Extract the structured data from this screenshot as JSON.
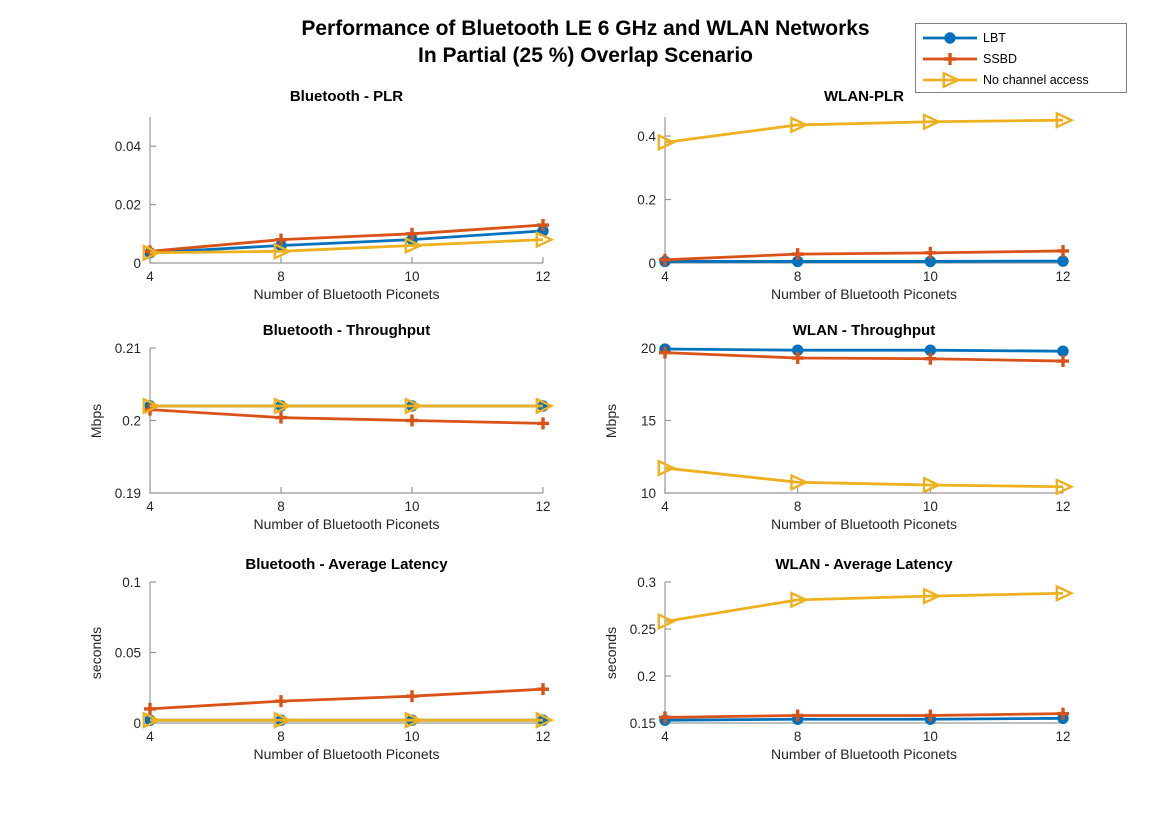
{
  "figure": {
    "title_line1": "Performance of Bluetooth LE 6 GHz and WLAN Networks",
    "title_line2": "In Partial (25 %) Overlap Scenario"
  },
  "colors": {
    "lbt": "#0072BD",
    "ssbd": "#D95319",
    "nca": "#EDB120",
    "axis_line": "#999999",
    "tick_text": "#262626",
    "title_text": "#000000",
    "legend_border": "#808080",
    "background": "#FFFFFF"
  },
  "legend": {
    "position": "top-right",
    "items": [
      {
        "label": "LBT",
        "series": "lbt",
        "marker": "circle"
      },
      {
        "label": "SSBD",
        "series": "ssbd",
        "marker": "plus"
      },
      {
        "label": "No channel access",
        "series": "nca",
        "marker": "triangle-right"
      }
    ]
  },
  "chart_data": [
    {
      "type": "line",
      "title": "Bluetooth - PLR",
      "xlabel": "Number of Bluetooth Piconets",
      "ylabel": "",
      "x": [
        4,
        8,
        10,
        12
      ],
      "xtick_labels": [
        "4",
        "8",
        "10",
        "12"
      ],
      "x_equally_spaced": true,
      "ylim": [
        0,
        0.05
      ],
      "yticks": [
        0,
        0.02,
        0.04
      ],
      "ytick_labels": [
        "0",
        "0.02",
        "0.04"
      ],
      "grid": false,
      "series": [
        {
          "name": "LBT",
          "key": "lbt",
          "marker": "circle",
          "values": [
            0.0035,
            0.006,
            0.008,
            0.011
          ]
        },
        {
          "name": "SSBD",
          "key": "ssbd",
          "marker": "plus",
          "values": [
            0.004,
            0.008,
            0.01,
            0.013
          ]
        },
        {
          "name": "No channel access",
          "key": "nca",
          "marker": "triangle-right",
          "values": [
            0.0035,
            0.004,
            0.006,
            0.008
          ]
        }
      ]
    },
    {
      "type": "line",
      "title": "WLAN-PLR",
      "xlabel": "Number of Bluetooth Piconets",
      "ylabel": "",
      "x": [
        4,
        8,
        10,
        12
      ],
      "xtick_labels": [
        "4",
        "8",
        "10",
        "12"
      ],
      "x_equally_spaced": true,
      "ylim": [
        0,
        0.46
      ],
      "yticks": [
        0,
        0.2,
        0.4
      ],
      "ytick_labels": [
        "0",
        "0.2",
        "0.4"
      ],
      "grid": false,
      "series": [
        {
          "name": "LBT",
          "key": "lbt",
          "marker": "circle",
          "values": [
            0.005,
            0.005,
            0.005,
            0.006
          ]
        },
        {
          "name": "SSBD",
          "key": "ssbd",
          "marker": "plus",
          "values": [
            0.01,
            0.028,
            0.032,
            0.038
          ]
        },
        {
          "name": "No channel access",
          "key": "nca",
          "marker": "triangle-right",
          "values": [
            0.38,
            0.435,
            0.445,
            0.45
          ]
        }
      ]
    },
    {
      "type": "line",
      "title": "Bluetooth - Throughput",
      "xlabel": "Number of Bluetooth Piconets",
      "ylabel": "Mbps",
      "x": [
        4,
        8,
        10,
        12
      ],
      "xtick_labels": [
        "4",
        "8",
        "10",
        "12"
      ],
      "x_equally_spaced": true,
      "ylim": [
        0.19,
        0.21
      ],
      "yticks": [
        0.19,
        0.2,
        0.21
      ],
      "ytick_labels": [
        "0.19",
        "0.2",
        "0.21"
      ],
      "grid": false,
      "series": [
        {
          "name": "LBT",
          "key": "lbt",
          "marker": "circle",
          "values": [
            0.202,
            0.202,
            0.202,
            0.202
          ]
        },
        {
          "name": "SSBD",
          "key": "ssbd",
          "marker": "plus",
          "values": [
            0.2015,
            0.2004,
            0.2,
            0.1996
          ]
        },
        {
          "name": "No channel access",
          "key": "nca",
          "marker": "triangle-right",
          "values": [
            0.202,
            0.202,
            0.202,
            0.202
          ]
        }
      ]
    },
    {
      "type": "line",
      "title": "WLAN - Throughput",
      "xlabel": "Number of Bluetooth Piconets",
      "ylabel": "Mbps",
      "x": [
        4,
        8,
        10,
        12
      ],
      "xtick_labels": [
        "4",
        "8",
        "10",
        "12"
      ],
      "x_equally_spaced": true,
      "ylim": [
        10,
        20
      ],
      "yticks": [
        10,
        15,
        20
      ],
      "ytick_labels": [
        "10",
        "15",
        "20"
      ],
      "grid": false,
      "series": [
        {
          "name": "LBT",
          "key": "lbt",
          "marker": "circle",
          "values": [
            19.93,
            19.85,
            19.85,
            19.78
          ]
        },
        {
          "name": "SSBD",
          "key": "ssbd",
          "marker": "plus",
          "values": [
            19.68,
            19.31,
            19.26,
            19.1
          ]
        },
        {
          "name": "No channel access",
          "key": "nca",
          "marker": "triangle-right",
          "values": [
            11.72,
            10.74,
            10.55,
            10.43
          ]
        }
      ]
    },
    {
      "type": "line",
      "title": "Bluetooth - Average Latency",
      "xlabel": "Number of Bluetooth Piconets",
      "ylabel": "seconds",
      "x": [
        4,
        8,
        10,
        12
      ],
      "xtick_labels": [
        "4",
        "8",
        "10",
        "12"
      ],
      "x_equally_spaced": true,
      "ylim": [
        0,
        0.1
      ],
      "yticks": [
        0,
        0.05,
        0.1
      ],
      "ytick_labels": [
        "0",
        "0.05",
        "0.1"
      ],
      "grid": false,
      "series": [
        {
          "name": "LBT",
          "key": "lbt",
          "marker": "circle",
          "values": [
            0.002,
            0.002,
            0.002,
            0.002
          ]
        },
        {
          "name": "SSBD",
          "key": "ssbd",
          "marker": "plus",
          "values": [
            0.01,
            0.0155,
            0.019,
            0.024
          ]
        },
        {
          "name": "No channel access",
          "key": "nca",
          "marker": "triangle-right",
          "values": [
            0.002,
            0.002,
            0.002,
            0.002
          ]
        }
      ]
    },
    {
      "type": "line",
      "title": "WLAN - Average Latency",
      "xlabel": "Number of Bluetooth Piconets",
      "ylabel": "seconds",
      "x": [
        4,
        8,
        10,
        12
      ],
      "xtick_labels": [
        "4",
        "8",
        "10",
        "12"
      ],
      "x_equally_spaced": true,
      "ylim": [
        0.15,
        0.3
      ],
      "yticks": [
        0.15,
        0.2,
        0.25,
        0.3
      ],
      "ytick_labels": [
        "0.15",
        "0.2",
        "0.25",
        "0.3"
      ],
      "grid": false,
      "series": [
        {
          "name": "LBT",
          "key": "lbt",
          "marker": "circle",
          "values": [
            0.153,
            0.154,
            0.154,
            0.155
          ]
        },
        {
          "name": "SSBD",
          "key": "ssbd",
          "marker": "plus",
          "values": [
            0.156,
            0.158,
            0.158,
            0.16
          ]
        },
        {
          "name": "No channel access",
          "key": "nca",
          "marker": "triangle-right",
          "values": [
            0.258,
            0.281,
            0.285,
            0.288
          ]
        }
      ]
    }
  ]
}
